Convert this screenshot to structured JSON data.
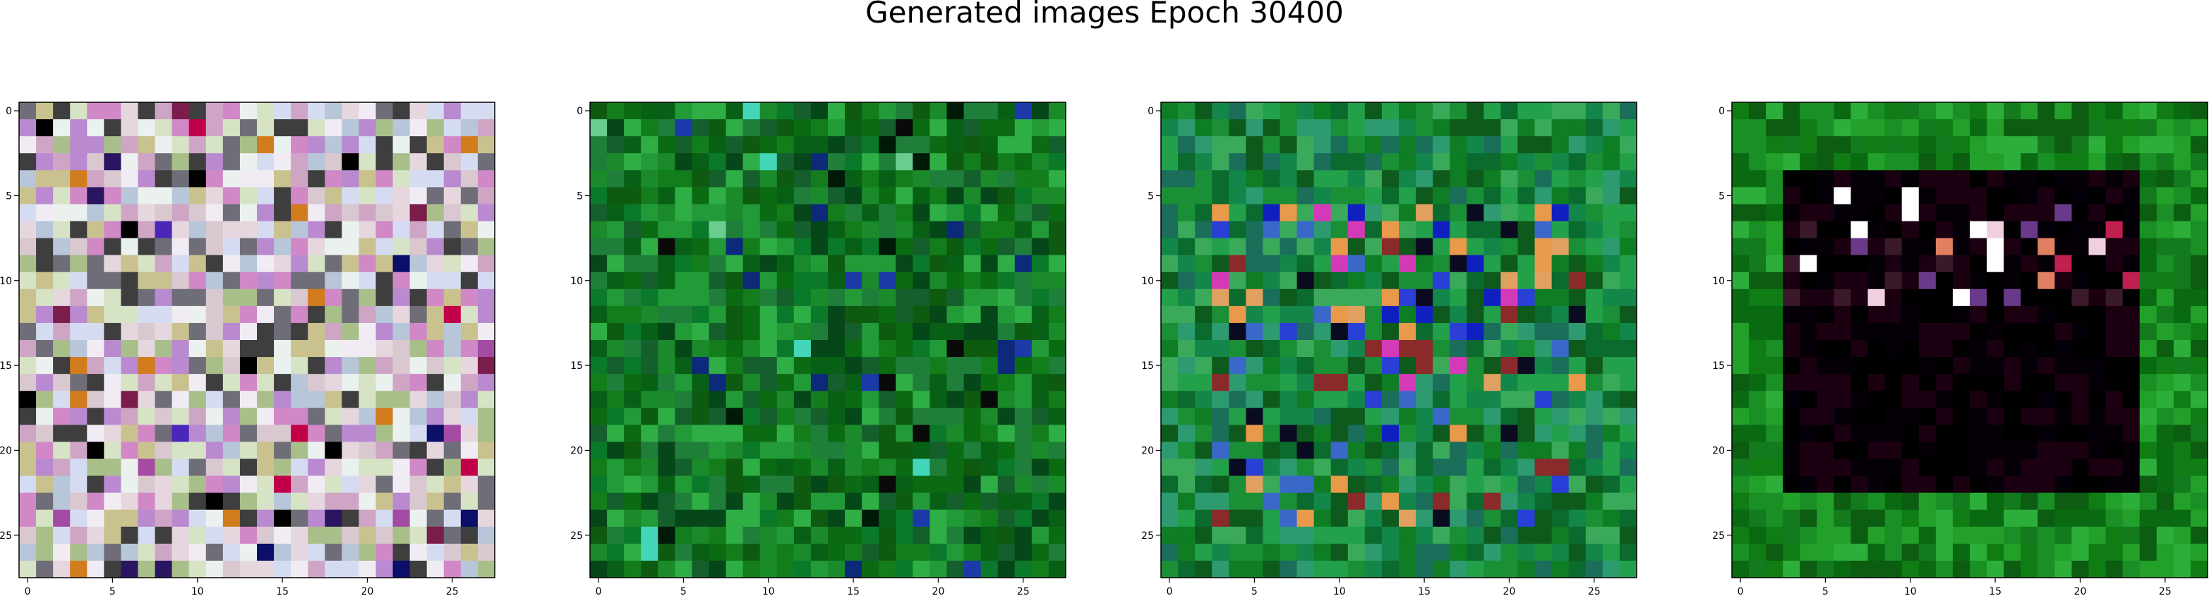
{
  "title": "Generated images Epoch 30400",
  "chart_data": [
    {
      "type": "heatmap",
      "description_style": "noise",
      "palette": [
        "#d9c8d0",
        "#e6d7de",
        "#cfa5c6",
        "#b7c6d9",
        "#f1ecf3",
        "#c9c18e",
        "#d188c7",
        "#6f6e78",
        "#3e3e3e",
        "#a9bf8a",
        "#d5dcf2",
        "#ebf1ee",
        "#b98ad0",
        "#d6e3c4"
      ],
      "accents": [
        "#000000",
        "#7a1d4a",
        "#c2004a",
        "#4a27b8",
        "#0b0f68",
        "#d17c1d",
        "#a44ba4",
        "#2a1660"
      ],
      "grid": 28,
      "xticks": [
        "0",
        "5",
        "10",
        "15",
        "20",
        "25"
      ],
      "yticks": [
        "0",
        "5",
        "10",
        "15",
        "20",
        "25"
      ],
      "xlim": [
        -0.5,
        27.5
      ],
      "ylim": [
        27.5,
        -0.5
      ]
    },
    {
      "type": "heatmap",
      "description_style": "green",
      "palette": [
        "#0b6b12",
        "#137d1c",
        "#086016",
        "#1a8a2a",
        "#0e5a10",
        "#229a38",
        "#0a7a2a",
        "#2fae45",
        "#06471a",
        "#155f2c",
        "#1f7f3a"
      ],
      "accents": [
        "#001a08",
        "#0d2a7a",
        "#1b3aa8",
        "#43d6b8",
        "#6acc8e",
        "#0a0a0a"
      ],
      "grid": 28,
      "xticks": [
        "0",
        "5",
        "10",
        "15",
        "20",
        "25"
      ],
      "yticks": [
        "0",
        "5",
        "10",
        "15",
        "20",
        "25"
      ],
      "xlim": [
        -0.5,
        27.5
      ],
      "ylim": [
        27.5,
        -0.5
      ]
    },
    {
      "type": "heatmap",
      "description_style": "green-blue",
      "palette": [
        "#0f7d24",
        "#1a8f35",
        "#0b6a2e",
        "#22a04a",
        "#13864a",
        "#2d9a70",
        "#1a6e5a",
        "#3aaa5a",
        "#0e5a1c"
      ],
      "accents": [
        "#1020c0",
        "#2a3fd6",
        "#3a68c8",
        "#d43ab8",
        "#e89a4a",
        "#0a0a20",
        "#8a2a2a",
        "#e0a060"
      ],
      "grid": 28,
      "xticks": [
        "0",
        "5",
        "10",
        "15",
        "20",
        "25"
      ],
      "yticks": [
        "0",
        "5",
        "10",
        "15",
        "20",
        "25"
      ],
      "xlim": [
        -0.5,
        27.5
      ],
      "ylim": [
        27.5,
        -0.5
      ]
    },
    {
      "type": "heatmap",
      "description_style": "green-frame-dark-center",
      "palette": [
        "#0f7d14",
        "#1a8f25",
        "#0a6a12",
        "#22a02a",
        "#137a1d",
        "#2dae3a",
        "#0c5c12"
      ],
      "accents": [
        "#000000",
        "#050008",
        "#1a0010",
        "#3a1a2a",
        "#f0d0e0",
        "#e08060",
        "#c02050",
        "#6a3a8a",
        "#ffffff"
      ],
      "grid": 28,
      "xticks": [
        "0",
        "5",
        "10",
        "15",
        "20",
        "25"
      ],
      "yticks": [
        "0",
        "5",
        "10",
        "15",
        "20",
        "25"
      ],
      "xlim": [
        -0.5,
        27.5
      ],
      "ylim": [
        27.5,
        -0.5
      ]
    }
  ]
}
